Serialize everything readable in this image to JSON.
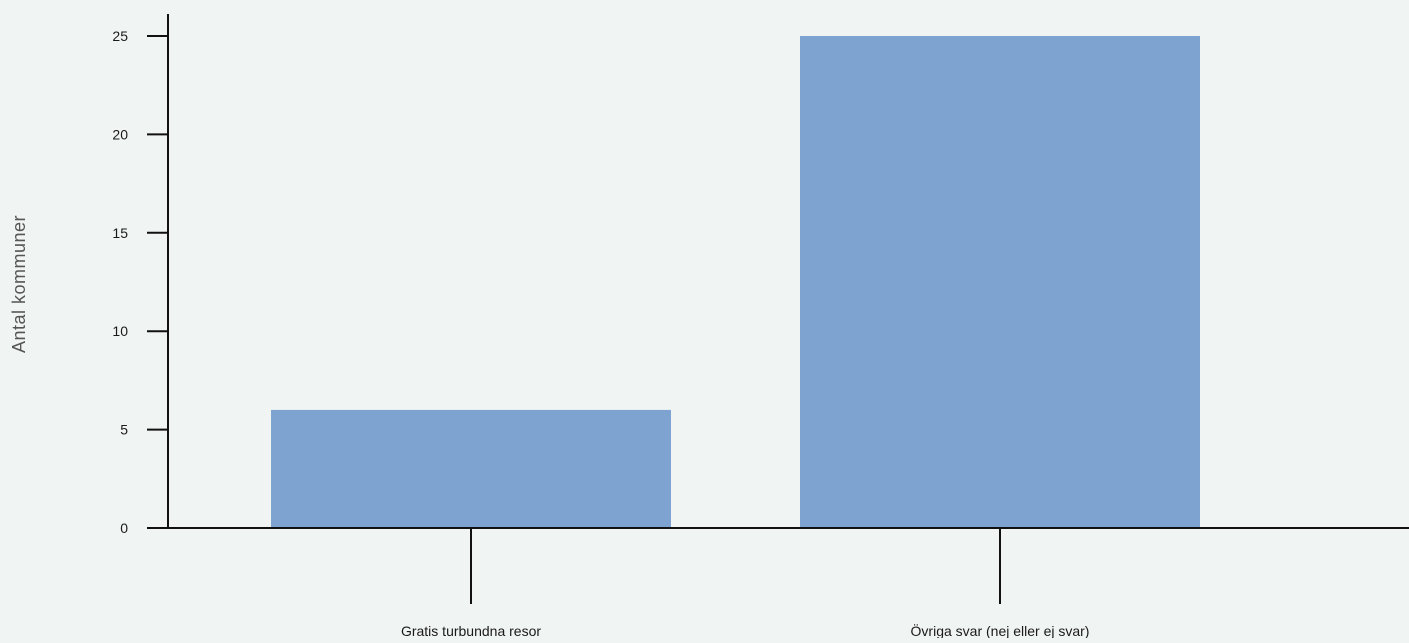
{
  "colors": {
    "background": "#f0f4f2",
    "bar": "#7fa3d0",
    "axis": "#111111"
  },
  "chart_data": {
    "type": "bar",
    "categories": [
      "Gratis turbundna resor",
      "Övriga svar (nej eller ej svar)"
    ],
    "values": [
      6,
      25
    ],
    "title": "",
    "xlabel": "",
    "ylabel": "Antal kommuner",
    "ylim": [
      0,
      25
    ],
    "yticks": [
      0,
      5,
      10,
      15,
      20,
      25
    ],
    "ytick_labels": [
      "0",
      "5",
      "10",
      "15",
      "20",
      "25"
    ],
    "grid": false,
    "legend": "none"
  }
}
